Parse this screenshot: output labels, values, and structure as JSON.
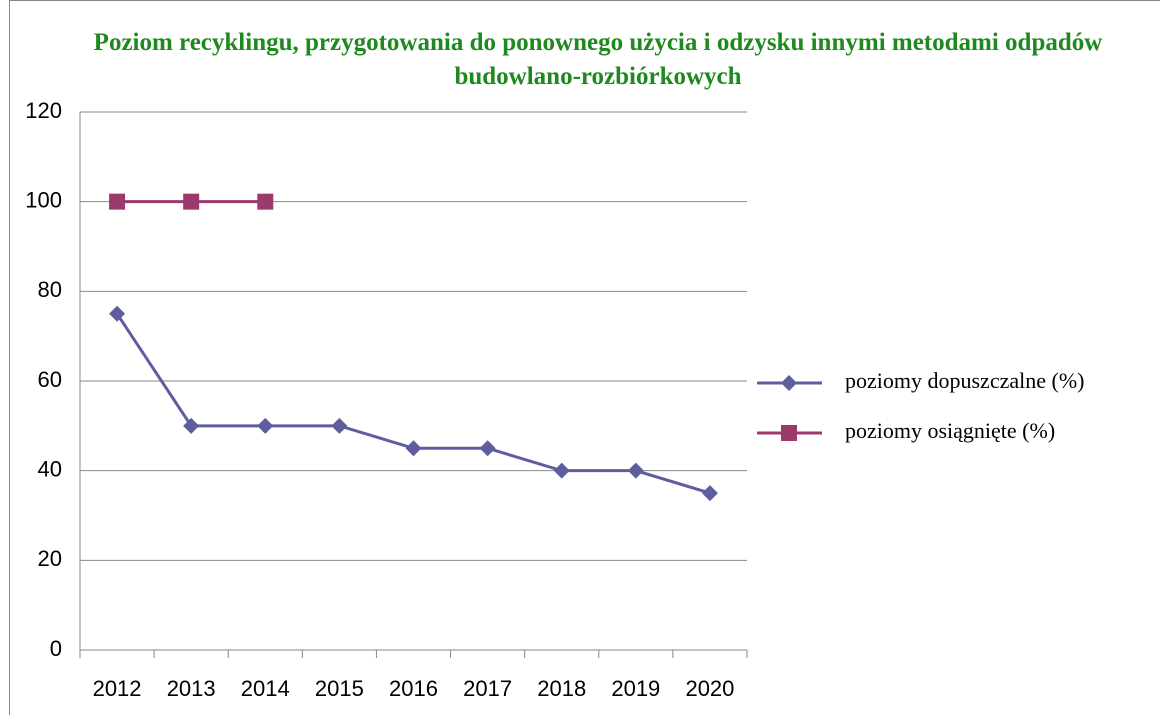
{
  "chart_data": {
    "type": "line",
    "title": "Poziom recyklingu, przygotowania do ponownego użycia i odzysku innymi metodami odpadów budowlano-rozbiórkowych",
    "categories": [
      "2012",
      "2013",
      "2014",
      "2015",
      "2016",
      "2017",
      "2018",
      "2019",
      "2020"
    ],
    "series": [
      {
        "name": "poziomy dopuszczalne (%)",
        "color": "#5e5e9e",
        "marker": "diamond",
        "values": [
          75,
          50,
          50,
          50,
          45,
          45,
          40,
          40,
          35
        ]
      },
      {
        "name": "poziomy osiągnięte (%)",
        "color": "#9c3a6e",
        "marker": "square",
        "values": [
          100,
          100,
          100,
          null,
          null,
          null,
          null,
          null,
          null
        ]
      }
    ],
    "ylim": [
      0,
      120
    ],
    "yticks": [
      0,
      20,
      40,
      60,
      80,
      100,
      120
    ],
    "grid": true,
    "legend": "right"
  }
}
